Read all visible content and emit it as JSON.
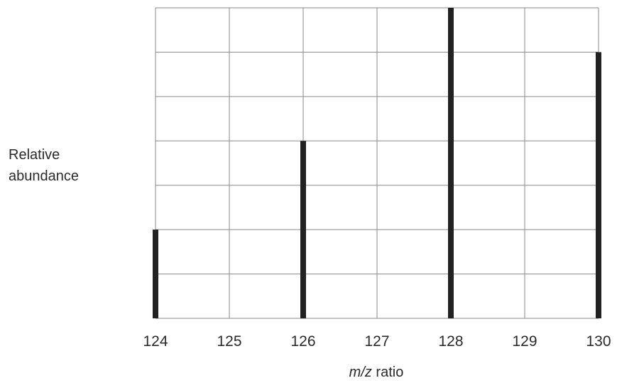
{
  "chart_data": {
    "type": "bar",
    "title": "",
    "xlabel_italic": "m/z",
    "xlabel_rest": " ratio",
    "ylabel_lines": [
      "Relative",
      "abundance"
    ],
    "x": [
      124,
      125,
      126,
      127,
      128,
      129,
      130
    ],
    "tick_labels": [
      "124",
      "125",
      "126",
      "127",
      "128",
      "129",
      "130"
    ],
    "bars": [
      {
        "x": 124,
        "value": 2
      },
      {
        "x": 126,
        "value": 4
      },
      {
        "x": 128,
        "value": 7
      },
      {
        "x": 130,
        "value": 6
      }
    ],
    "xlim": [
      124,
      130
    ],
    "ylim": [
      0,
      7
    ],
    "grid": true,
    "y_tick_labels_shown": false,
    "bar_color": "#222222",
    "grid_color": "#8a8a8a"
  }
}
